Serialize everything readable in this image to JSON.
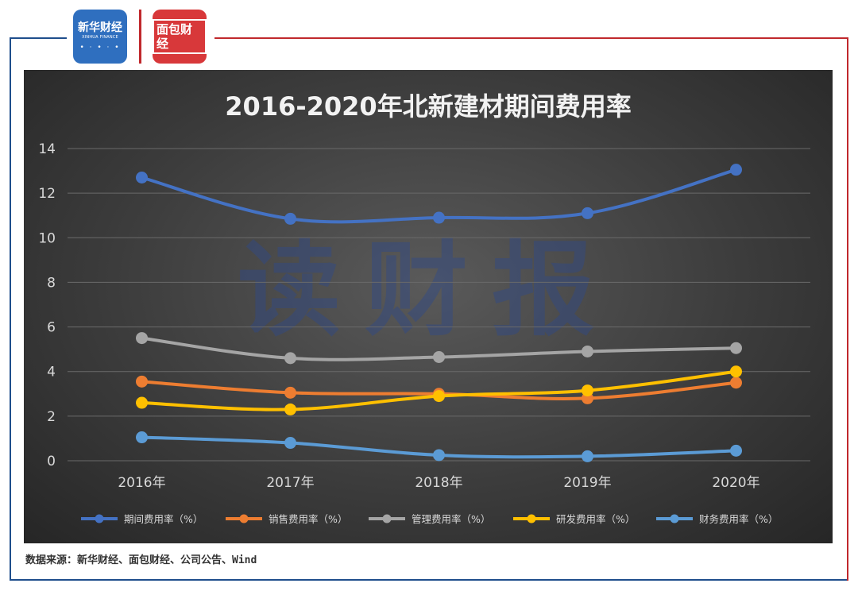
{
  "header": {
    "logo_xinhua_cn": "新华财经",
    "logo_xinhua_en": "XINHUA FINANCE",
    "logo_mianbao": "面包财经"
  },
  "watermark": "读财报",
  "source_note": "数据来源：新华财经、面包财经、公司公告、Wind",
  "colors": {
    "frame_blue": "#1f4e8c",
    "frame_red": "#c0282c",
    "panel_bg": "#3c3c3c"
  },
  "chart_data": {
    "type": "line",
    "title": "2016-2020年北新建材期间费用率",
    "categories": [
      "2016年",
      "2017年",
      "2018年",
      "2019年",
      "2020年"
    ],
    "ylim": [
      0,
      14
    ],
    "yticks": [
      0,
      2,
      4,
      6,
      8,
      10,
      12,
      14
    ],
    "grid": true,
    "legend_position": "bottom",
    "series": [
      {
        "name": "期间费用率（%）",
        "color": "#4472c4",
        "values": [
          12.7,
          10.85,
          10.9,
          11.1,
          13.05
        ]
      },
      {
        "name": "销售费用率（%）",
        "color": "#ed7d31",
        "values": [
          3.55,
          3.05,
          3.0,
          2.8,
          3.5
        ]
      },
      {
        "name": "管理费用率（%）",
        "color": "#a5a5a5",
        "values": [
          5.5,
          4.6,
          4.65,
          4.9,
          5.05
        ]
      },
      {
        "name": "研发费用率（%）",
        "color": "#ffc000",
        "values": [
          2.6,
          2.3,
          2.9,
          3.15,
          4.0
        ]
      },
      {
        "name": "财务费用率（%）",
        "color": "#5b9bd5",
        "values": [
          1.05,
          0.8,
          0.25,
          0.2,
          0.45
        ]
      }
    ]
  }
}
